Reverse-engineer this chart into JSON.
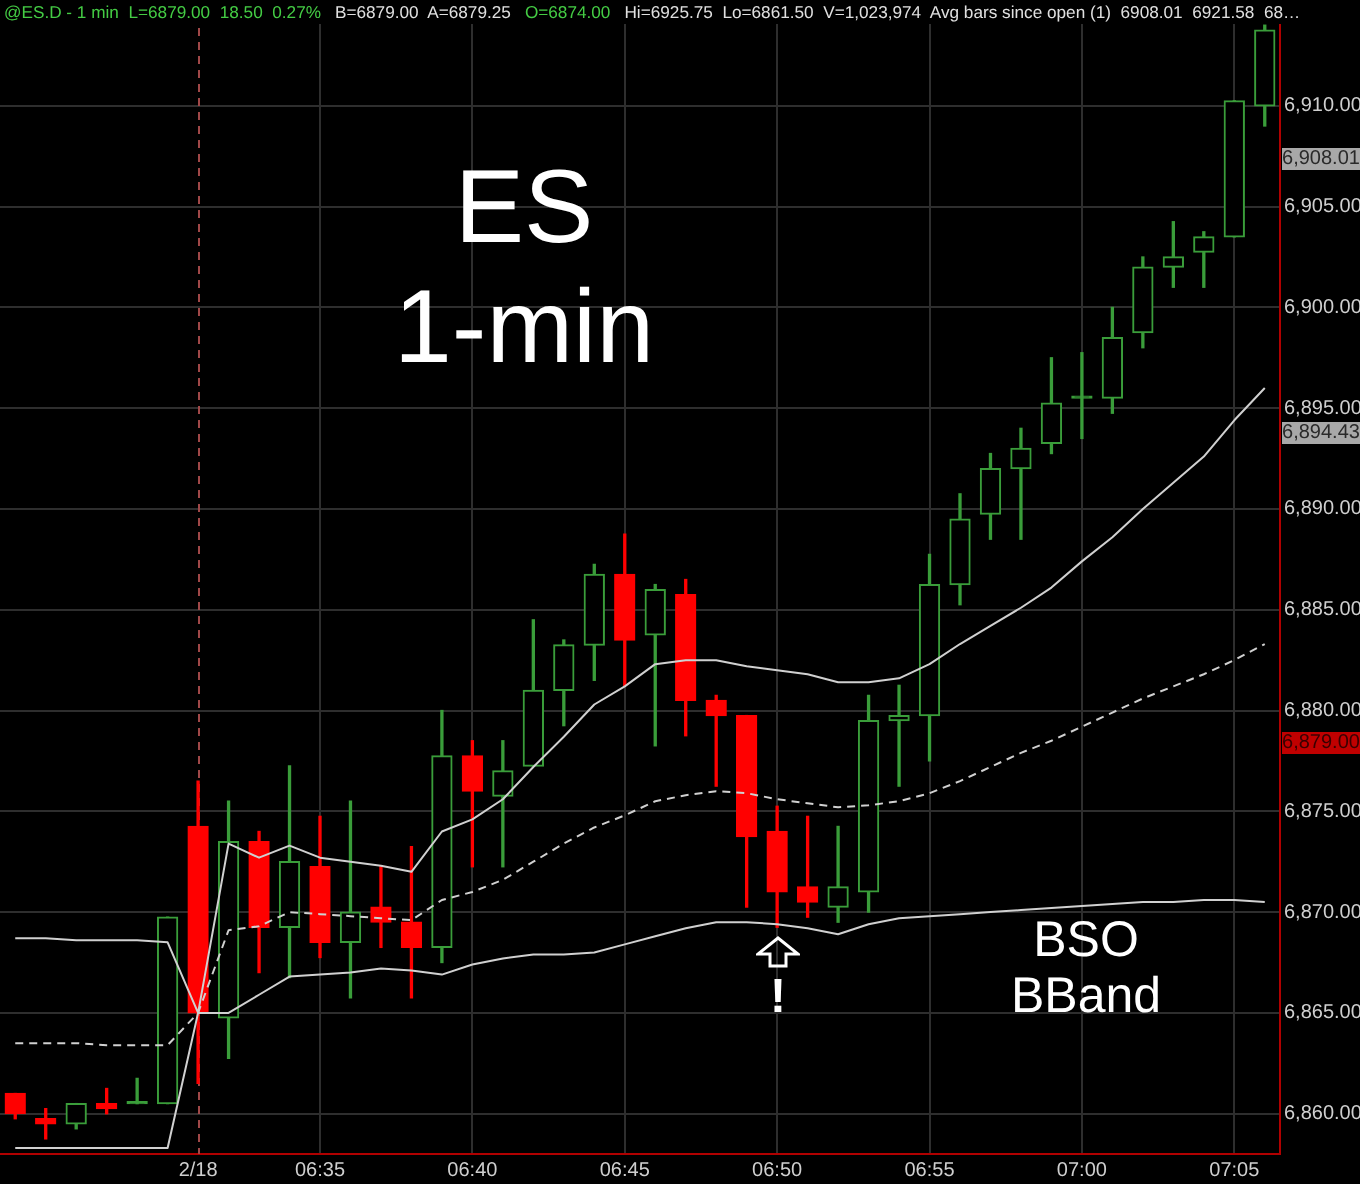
{
  "chart_data": {
    "type": "candlestick",
    "title": "ES 1-min",
    "categories": [
      null,
      null,
      null,
      null,
      null,
      null,
      "2/18",
      null,
      null,
      null,
      "06:35",
      null,
      null,
      null,
      null,
      "06:40",
      null,
      null,
      null,
      null,
      "06:45",
      null,
      null,
      null,
      null,
      "06:50",
      null,
      null,
      null,
      null,
      "06:55",
      null,
      null,
      null,
      null,
      "07:00",
      null,
      null,
      null,
      null,
      "07:05",
      null
    ],
    "series": [
      {
        "type": "candlestick",
        "ohlc": [
          [
            6861.0,
            6861.0,
            6859.75,
            6860.0
          ],
          [
            6859.75,
            6860.25,
            6858.75,
            6859.5
          ],
          [
            6859.5,
            6860.5,
            6859.25,
            6860.5
          ],
          [
            6860.5,
            6861.25,
            6860.0,
            6860.25
          ],
          [
            6860.5,
            6861.75,
            6860.5,
            6860.5
          ],
          [
            6860.5,
            6869.75,
            6860.5,
            6869.75
          ],
          [
            6874.25,
            6876.5,
            6861.5,
            6865.0
          ],
          [
            6864.75,
            6875.5,
            6862.75,
            6873.5
          ],
          [
            6873.5,
            6874.0,
            6867.0,
            6869.25
          ],
          [
            6869.25,
            6877.25,
            6866.75,
            6872.5
          ],
          [
            6872.25,
            6874.75,
            6867.75,
            6868.5
          ],
          [
            6868.5,
            6875.5,
            6865.75,
            6870.0
          ],
          [
            6870.25,
            6872.25,
            6868.25,
            6869.5
          ],
          [
            6869.5,
            6873.25,
            6865.75,
            6868.25
          ],
          [
            6868.25,
            6880.0,
            6867.5,
            6877.75
          ],
          [
            6877.75,
            6878.5,
            6872.25,
            6876.0
          ],
          [
            6875.75,
            6878.5,
            6872.25,
            6877.0
          ],
          [
            6877.25,
            6884.5,
            6877.25,
            6881.0
          ],
          [
            6881.0,
            6883.5,
            6879.25,
            6883.25
          ],
          [
            6883.25,
            6887.25,
            6881.5,
            6886.75
          ],
          [
            6886.75,
            6888.75,
            6881.25,
            6883.5
          ],
          [
            6883.75,
            6886.25,
            6878.25,
            6886.0
          ],
          [
            6885.75,
            6886.5,
            6878.75,
            6880.5
          ],
          [
            6880.5,
            6880.75,
            6876.25,
            6879.75
          ],
          [
            6879.75,
            6879.75,
            6870.25,
            6873.75
          ],
          [
            6874.0,
            6875.25,
            6869.25,
            6871.0
          ],
          [
            6871.25,
            6874.75,
            6869.75,
            6870.5
          ],
          [
            6870.25,
            6874.25,
            6869.5,
            6871.25
          ],
          [
            6871.0,
            6880.75,
            6870.0,
            6879.5
          ],
          [
            6879.5,
            6881.25,
            6876.25,
            6879.75
          ],
          [
            6879.75,
            6887.75,
            6877.5,
            6886.25
          ],
          [
            6886.25,
            6890.75,
            6885.25,
            6889.5
          ],
          [
            6889.75,
            6892.75,
            6888.5,
            6892.0
          ],
          [
            6892.0,
            6894.0,
            6888.5,
            6893.0
          ],
          [
            6893.25,
            6897.5,
            6892.75,
            6895.25
          ],
          [
            6895.5,
            6897.75,
            6893.5,
            6895.5
          ],
          [
            6895.5,
            6900.0,
            6894.75,
            6898.5
          ],
          [
            6898.75,
            6902.5,
            6898.0,
            6902.0
          ],
          [
            6902.0,
            6904.25,
            6901.0,
            6902.5
          ],
          [
            6902.75,
            6903.75,
            6901.0,
            6903.5
          ],
          [
            6903.5,
            6910.25,
            6903.5,
            6910.25
          ],
          [
            6910.0,
            6914.0,
            6909.0,
            6913.75
          ]
        ],
        "colors": [
          "#ff0000",
          "#ff0000",
          "#3a9d3a",
          "#ff0000",
          "#3a9d3a",
          "#3a9d3a",
          "#ff0000",
          "#3a9d3a",
          "#ff0000",
          "#3a9d3a",
          "#ff0000",
          "#3a9d3a",
          "#ff0000",
          "#ff0000",
          "#3a9d3a",
          "#ff0000",
          "#3a9d3a",
          "#3a9d3a",
          "#3a9d3a",
          "#3a9d3a",
          "#ff0000",
          "#3a9d3a",
          "#ff0000",
          "#ff0000",
          "#ff0000",
          "#ff0000",
          "#ff0000",
          "#3a9d3a",
          "#3a9d3a",
          "#3a9d3a",
          "#3a9d3a",
          "#3a9d3a",
          "#3a9d3a",
          "#3a9d3a",
          "#3a9d3a",
          "#3a9d3a",
          "#3a9d3a",
          "#3a9d3a",
          "#3a9d3a",
          "#3a9d3a",
          "#3a9d3a",
          "#3a9d3a"
        ]
      },
      {
        "type": "line",
        "color": "#d0d0d0",
        "values": [
          6868.7,
          6868.7,
          6868.6,
          6868.6,
          6868.6,
          6868.5,
          6865.0,
          6873.4,
          6872.7,
          6873.3,
          6872.7,
          6872.5,
          6872.3,
          6872.0,
          6874.0,
          6874.6,
          6875.6,
          6877.2,
          6878.7,
          6880.3,
          6881.2,
          6882.3,
          6882.5,
          6882.5,
          6882.2,
          6882.0,
          6881.8,
          6881.4,
          6881.4,
          6881.6,
          6882.3,
          6883.3,
          6884.2,
          6885.1,
          6886.1,
          6887.4,
          6888.6,
          6890.0,
          6891.3,
          6892.6,
          6894.4,
          6896.0
        ]
      },
      {
        "type": "line",
        "color": "#d0d0d0",
        "line_style": "dashed",
        "values": [
          6863.5,
          6863.5,
          6863.5,
          6863.4,
          6863.4,
          6863.4,
          6865.0,
          6869.1,
          6869.3,
          6870.0,
          6869.9,
          6869.8,
          6869.7,
          6869.6,
          6870.6,
          6871.0,
          6871.6,
          6872.5,
          6873.4,
          6874.2,
          6874.8,
          6875.5,
          6875.8,
          6876.0,
          6875.9,
          6875.6,
          6875.4,
          6875.2,
          6875.3,
          6875.5,
          6875.9,
          6876.5,
          6877.2,
          6877.9,
          6878.5,
          6879.2,
          6879.9,
          6880.6,
          6881.2,
          6881.8,
          6882.5,
          6883.3
        ]
      },
      {
        "type": "line",
        "color": "#d0d0d0",
        "values": [
          6858.3,
          6858.3,
          6858.3,
          6858.3,
          6858.3,
          6858.3,
          6865.0,
          6865.0,
          6865.9,
          6866.8,
          6866.9,
          6867.0,
          6867.2,
          6867.1,
          6866.9,
          6867.4,
          6867.7,
          6867.9,
          6867.9,
          6868.0,
          6868.4,
          6868.8,
          6869.2,
          6869.5,
          6869.5,
          6869.4,
          6869.2,
          6868.9,
          6869.4,
          6869.7,
          6869.8,
          6869.9,
          6870.0,
          6870.1,
          6870.2,
          6870.3,
          6870.4,
          6870.5,
          6870.5,
          6870.6,
          6870.6,
          6870.5
        ]
      }
    ],
    "ylim": [
      6858,
      6915.25
    ],
    "yticks": [
      {
        "value": 6860,
        "label": "6,860.00"
      },
      {
        "value": 6865,
        "label": "6,865.00"
      },
      {
        "value": 6870,
        "label": "6,870.00"
      },
      {
        "value": 6875,
        "label": "6,875.00"
      },
      {
        "value": 6880,
        "label": "6,880.00"
      },
      {
        "value": 6885,
        "label": "6,885.00"
      },
      {
        "value": 6890,
        "label": "6,890.00"
      },
      {
        "value": 6895,
        "label": "6,895.00"
      },
      {
        "value": 6900,
        "label": "6,900.00"
      },
      {
        "value": 6905,
        "label": "6,905.00"
      },
      {
        "value": 6910,
        "label": "6,910.00"
      }
    ],
    "grid": true,
    "ref_lines": [
      {
        "axis": "x",
        "value": "2/18",
        "color": "#a04848",
        "line_style": "dashed"
      }
    ],
    "annotations": [
      "@ES.D - 1 min  L=6879.00  18.50  0.27%",
      "B=6879.00  A=6879.25",
      "O=6874.00",
      "Hi=6925.75  Lo=6861.50  V=1,023,974  Avg bars since open (1)  6908.01  6921.58  68…",
      "BSO BBand",
      "!",
      "6,908.01",
      "6,894.43",
      "6,879.00"
    ]
  }
}
